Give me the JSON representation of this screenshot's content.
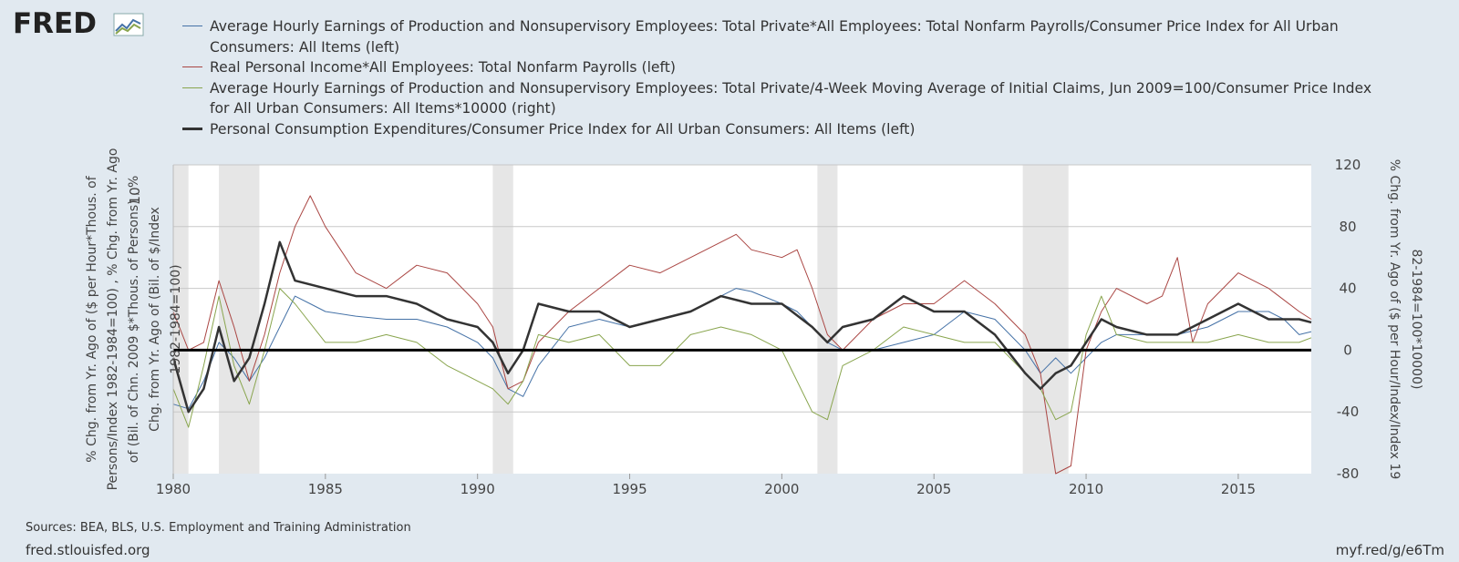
{
  "logo": {
    "text": "FRED",
    "icon": "fred-chart-icon"
  },
  "chart_data": {
    "type": "line",
    "title": "",
    "xlabel": "",
    "ylabel_left": "% Chg. from Yr. Ago of ($ per Hour*Thous. of Persons/Index 1982-1984=100) , % Chg. from Yr. Ago of (Bil. of Chn. 2009 $*Thous. of Persons) , % Chg. from Yr. Ago of (Bil. of $/Index 1982-1984=100)",
    "ylabel_right": "% Chg. from Yr. Ago of ($ per Hour/Index/Index 1982-1984=100*10000)",
    "xlim": [
      1980,
      2017.4
    ],
    "ylim_right": [
      -80,
      120
    ],
    "ylim_left": [
      -8,
      12
    ],
    "x_ticks": [
      "1980",
      "1985",
      "1990",
      "1995",
      "2000",
      "2005",
      "2010",
      "2015"
    ],
    "x_tick_values": [
      1980,
      1985,
      1990,
      1995,
      2000,
      2005,
      2010,
      2015
    ],
    "y_ticks_right": [
      "-80",
      "-40",
      "0",
      "40",
      "80",
      "120"
    ],
    "y_tick_values_right": [
      -80,
      -40,
      0,
      40,
      80,
      120
    ],
    "y_ticks_left": [
      "10"
    ],
    "y_tick_values_left": [
      10
    ],
    "zero_line": 0,
    "recessions": [
      [
        1980.0,
        1980.5
      ],
      [
        1981.5,
        1982.83
      ],
      [
        1990.5,
        1991.17
      ],
      [
        2001.17,
        2001.83
      ],
      [
        2007.92,
        2009.42
      ]
    ],
    "series": [
      {
        "name": "Average Hourly Earnings of Production and Nonsupervisory Employees: Total Private*All Employees: Total Nonfarm Payrolls/Consumer Price Index for All Urban Consumers: All Items (left)",
        "axis": "left",
        "color": "#4572a7",
        "width": 1,
        "x": [
          1980,
          1980.5,
          1981,
          1981.5,
          1982,
          1982.5,
          1983,
          1983.5,
          1984,
          1984.5,
          1985,
          1986,
          1987,
          1988,
          1989,
          1990,
          1990.5,
          1991,
          1991.5,
          1992,
          1993,
          1994,
          1995,
          1996,
          1997,
          1998,
          1998.5,
          1999,
          2000,
          2000.5,
          2001,
          2001.5,
          2002,
          2003,
          2004,
          2005,
          2006,
          2007,
          2008,
          2008.5,
          2009,
          2009.5,
          2010,
          2010.5,
          2011,
          2012,
          2013,
          2014,
          2015,
          2016,
          2016.5,
          2017,
          2017.4
        ],
        "values": [
          -3.5,
          -3.8,
          -2.0,
          0.5,
          -0.5,
          -2.0,
          -0.5,
          1.5,
          3.5,
          3.0,
          2.5,
          2.2,
          2.0,
          2.0,
          1.5,
          0.5,
          -0.5,
          -2.5,
          -3.0,
          -1.0,
          1.5,
          2.0,
          1.5,
          2.0,
          2.5,
          3.5,
          4.0,
          3.8,
          3.0,
          2.5,
          1.5,
          0.5,
          0.0,
          0.0,
          0.5,
          1.0,
          2.5,
          2.0,
          0.0,
          -1.5,
          -0.5,
          -1.5,
          -0.5,
          0.5,
          1.0,
          1.0,
          1.0,
          1.5,
          2.5,
          2.5,
          2.0,
          1.0,
          1.2
        ]
      },
      {
        "name": "Real Personal Income*All Employees: Total Nonfarm Payrolls (left)",
        "axis": "left",
        "color": "#aa4643",
        "width": 1,
        "x": [
          1980,
          1980.5,
          1981,
          1981.5,
          1982,
          1982.5,
          1983,
          1983.5,
          1984,
          1984.5,
          1985,
          1985.5,
          1986,
          1987,
          1988,
          1989,
          1990,
          1990.5,
          1991,
          1991.5,
          1992,
          1993,
          1994,
          1995,
          1996,
          1997,
          1998,
          1998.5,
          1999,
          2000,
          2000.5,
          2001,
          2001.5,
          2002,
          2003,
          2004,
          2005,
          2006,
          2007,
          2008,
          2008.5,
          2009,
          2009.5,
          2010,
          2010.5,
          2011,
          2012,
          2012.5,
          2013,
          2013.5,
          2014,
          2014.5,
          2015,
          2015.5,
          2016,
          2017,
          2017.4
        ],
        "values": [
          2.5,
          0.0,
          0.5,
          4.5,
          1.5,
          -2.0,
          1.0,
          5.0,
          8.0,
          10.0,
          8.0,
          6.5,
          5.0,
          4.0,
          5.5,
          5.0,
          3.0,
          1.5,
          -2.5,
          -2.0,
          0.5,
          2.5,
          4.0,
          5.5,
          5.0,
          6.0,
          7.0,
          7.5,
          6.5,
          6.0,
          6.5,
          4.0,
          1.0,
          0.0,
          2.0,
          3.0,
          3.0,
          4.5,
          3.0,
          1.0,
          -1.5,
          -8.0,
          -7.5,
          0.0,
          2.5,
          4.0,
          3.0,
          3.5,
          6.0,
          0.5,
          3.0,
          4.0,
          5.0,
          4.5,
          4.0,
          2.5,
          2.0
        ]
      },
      {
        "name": "Average Hourly Earnings of Production and Nonsupervisory Employees: Total Private/4-Week Moving Average of Initial Claims, Jun 2009=100/Consumer Price Index for All Urban Consumers: All Items*10000 (right)",
        "axis": "right",
        "color": "#89a54e",
        "width": 1,
        "x": [
          1980,
          1980.5,
          1981,
          1981.5,
          1982,
          1982.5,
          1983,
          1983.5,
          1984,
          1985,
          1986,
          1987,
          1988,
          1989,
          1990,
          1990.5,
          1991,
          1991.5,
          1992,
          1993,
          1994,
          1995,
          1996,
          1997,
          1998,
          1999,
          2000,
          2001,
          2001.5,
          2002,
          2003,
          2004,
          2005,
          2006,
          2007,
          2008,
          2008.5,
          2009,
          2009.5,
          2010,
          2010.5,
          2011,
          2012,
          2013,
          2014,
          2015,
          2016,
          2017,
          2017.4
        ],
        "values": [
          -25,
          -50,
          -10,
          35,
          -10,
          -35,
          0,
          40,
          30,
          5,
          5,
          10,
          5,
          -10,
          -20,
          -25,
          -35,
          -20,
          10,
          5,
          10,
          -10,
          -10,
          10,
          15,
          10,
          0,
          -40,
          -45,
          -10,
          0,
          15,
          10,
          5,
          5,
          -15,
          -25,
          -45,
          -40,
          10,
          35,
          10,
          5,
          5,
          5,
          10,
          5,
          5,
          8
        ]
      },
      {
        "name": "Personal Consumption Expenditures/Consumer Price Index for All Urban Consumers: All Items (left)",
        "axis": "left",
        "color": "#333333",
        "width": 2.5,
        "x": [
          1980,
          1980.5,
          1981,
          1981.5,
          1982,
          1982.5,
          1983,
          1983.5,
          1984,
          1985,
          1986,
          1987,
          1988,
          1989,
          1990,
          1990.5,
          1991,
          1991.5,
          1992,
          1993,
          1994,
          1995,
          1996,
          1997,
          1998,
          1999,
          2000,
          2001,
          2001.5,
          2002,
          2003,
          2004,
          2005,
          2006,
          2007,
          2008,
          2008.5,
          2009,
          2009.5,
          2010,
          2010.5,
          2011,
          2012,
          2013,
          2014,
          2015,
          2016,
          2017,
          2017.4
        ],
        "values": [
          -0.5,
          -4.0,
          -2.5,
          1.5,
          -2.0,
          -0.5,
          3.0,
          7.0,
          4.5,
          4.0,
          3.5,
          3.5,
          3.0,
          2.0,
          1.5,
          0.5,
          -1.5,
          0.0,
          3.0,
          2.5,
          2.5,
          1.5,
          2.0,
          2.5,
          3.5,
          3.0,
          3.0,
          1.5,
          0.5,
          1.5,
          2.0,
          3.5,
          2.5,
          2.5,
          1.0,
          -1.5,
          -2.5,
          -1.5,
          -1.0,
          0.5,
          2.0,
          1.5,
          1.0,
          1.0,
          2.0,
          3.0,
          2.0,
          2.0,
          1.8
        ]
      }
    ]
  },
  "footer": {
    "sources": "Sources: BEA, BLS, U.S. Employment and Training Administration",
    "site": "fred.stlouisfed.org",
    "short_url": "myf.red/g/e6Tm"
  }
}
